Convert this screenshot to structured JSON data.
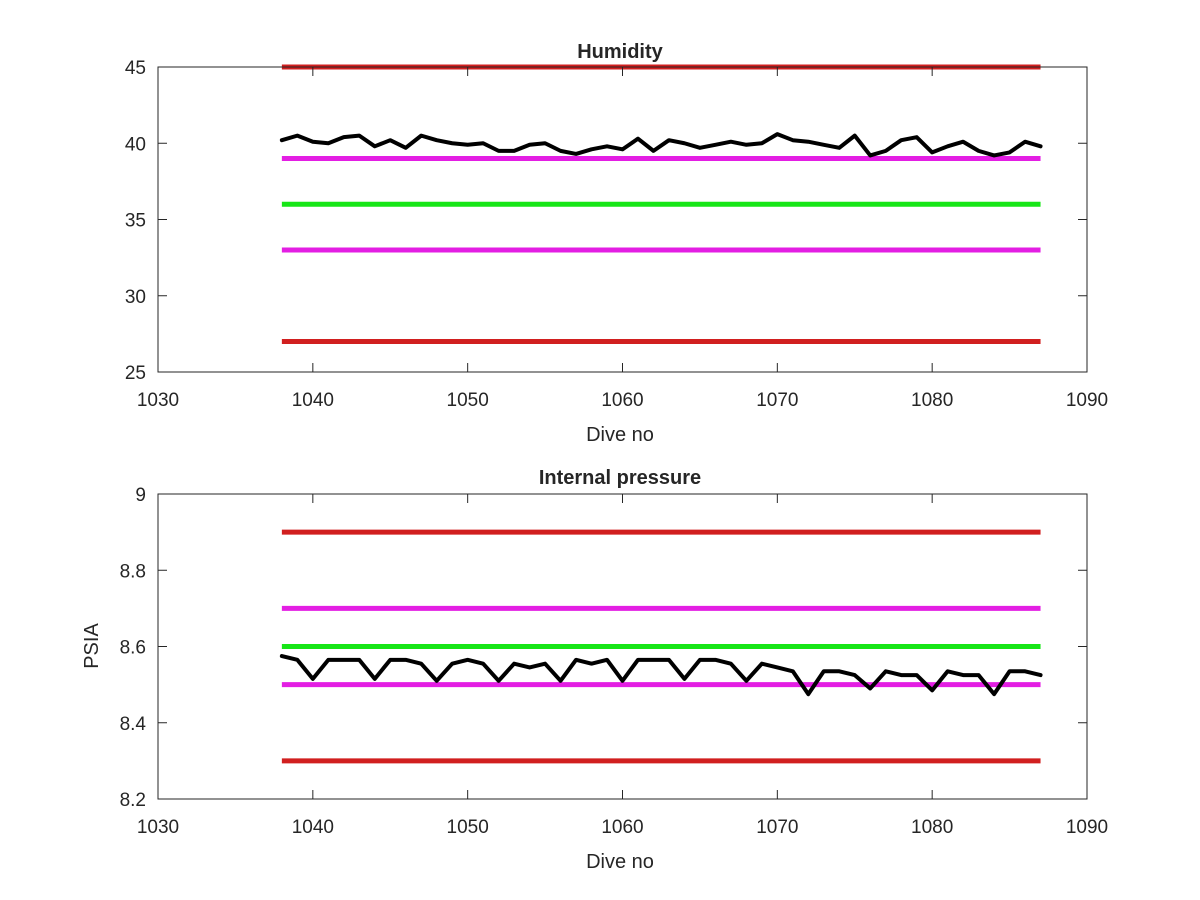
{
  "chart_data": [
    {
      "type": "line",
      "title": "Humidity",
      "xlabel": "Dive no",
      "ylabel": "",
      "xlim": [
        1030,
        1090
      ],
      "ylim": [
        25,
        45
      ],
      "xticks": [
        1030,
        1040,
        1050,
        1060,
        1070,
        1080,
        1090
      ],
      "yticks": [
        25,
        30,
        35,
        40,
        45
      ],
      "grid": false,
      "legend": "none",
      "thresholds": [
        {
          "y": 45,
          "color": "#d11f1f",
          "x_range": [
            1038,
            1087
          ]
        },
        {
          "y": 39,
          "color": "#e31ee3",
          "x_range": [
            1038,
            1087
          ]
        },
        {
          "y": 36,
          "color": "#17e617",
          "x_range": [
            1038,
            1087
          ]
        },
        {
          "y": 33,
          "color": "#e31ee3",
          "x_range": [
            1038,
            1087
          ]
        },
        {
          "y": 27,
          "color": "#d11f1f",
          "x_range": [
            1038,
            1087
          ]
        }
      ],
      "series": [
        {
          "color": "#000000",
          "x": [
            1038,
            1039,
            1040,
            1041,
            1042,
            1043,
            1044,
            1045,
            1046,
            1047,
            1048,
            1049,
            1050,
            1051,
            1052,
            1053,
            1054,
            1055,
            1056,
            1057,
            1058,
            1059,
            1060,
            1061,
            1062,
            1063,
            1064,
            1065,
            1066,
            1067,
            1068,
            1069,
            1070,
            1071,
            1072,
            1073,
            1074,
            1075,
            1076,
            1077,
            1078,
            1079,
            1080,
            1081,
            1082,
            1083,
            1084,
            1085,
            1086,
            1087
          ],
          "y": [
            40.2,
            40.5,
            40.1,
            40.0,
            40.4,
            40.5,
            39.8,
            40.2,
            39.7,
            40.5,
            40.2,
            40.0,
            39.9,
            40.0,
            39.5,
            39.5,
            39.9,
            40.0,
            39.5,
            39.3,
            39.6,
            39.8,
            39.6,
            40.3,
            39.5,
            40.2,
            40.0,
            39.7,
            39.9,
            40.1,
            39.9,
            40.0,
            40.6,
            40.2,
            40.1,
            39.9,
            39.7,
            40.5,
            39.2,
            39.5,
            40.2,
            40.4,
            39.4,
            39.8,
            40.1,
            39.5,
            39.2,
            39.4,
            40.1,
            39.8
          ]
        }
      ]
    },
    {
      "type": "line",
      "title": "Internal pressure",
      "xlabel": "Dive no",
      "ylabel": "PSIA",
      "xlim": [
        1030,
        1090
      ],
      "ylim": [
        8.2,
        9.0
      ],
      "xticks": [
        1030,
        1040,
        1050,
        1060,
        1070,
        1080,
        1090
      ],
      "yticks": [
        8.2,
        8.4,
        8.6,
        8.8,
        9.0
      ],
      "yticklabels": [
        "8.2",
        "8.4",
        "8.6",
        "8.8",
        "9"
      ],
      "grid": false,
      "legend": "none",
      "thresholds": [
        {
          "y": 8.9,
          "color": "#d11f1f",
          "x_range": [
            1038,
            1087
          ]
        },
        {
          "y": 8.7,
          "color": "#e31ee3",
          "x_range": [
            1038,
            1087
          ]
        },
        {
          "y": 8.6,
          "color": "#17e617",
          "x_range": [
            1038,
            1087
          ]
        },
        {
          "y": 8.5,
          "color": "#e31ee3",
          "x_range": [
            1038,
            1087
          ]
        },
        {
          "y": 8.3,
          "color": "#d11f1f",
          "x_range": [
            1038,
            1087
          ]
        }
      ],
      "series": [
        {
          "color": "#000000",
          "x": [
            1038,
            1039,
            1040,
            1041,
            1042,
            1043,
            1044,
            1045,
            1046,
            1047,
            1048,
            1049,
            1050,
            1051,
            1052,
            1053,
            1054,
            1055,
            1056,
            1057,
            1058,
            1059,
            1060,
            1061,
            1062,
            1063,
            1064,
            1065,
            1066,
            1067,
            1068,
            1069,
            1070,
            1071,
            1072,
            1073,
            1074,
            1075,
            1076,
            1077,
            1078,
            1079,
            1080,
            1081,
            1082,
            1083,
            1084,
            1085,
            1086,
            1087
          ],
          "y": [
            8.575,
            8.565,
            8.515,
            8.565,
            8.565,
            8.565,
            8.515,
            8.565,
            8.565,
            8.555,
            8.51,
            8.555,
            8.565,
            8.555,
            8.51,
            8.555,
            8.545,
            8.555,
            8.51,
            8.565,
            8.555,
            8.565,
            8.51,
            8.565,
            8.565,
            8.565,
            8.515,
            8.565,
            8.565,
            8.555,
            8.51,
            8.555,
            8.545,
            8.535,
            8.475,
            8.535,
            8.535,
            8.525,
            8.49,
            8.535,
            8.525,
            8.525,
            8.485,
            8.535,
            8.525,
            8.525,
            8.475,
            8.535,
            8.535,
            8.525
          ]
        }
      ]
    }
  ]
}
